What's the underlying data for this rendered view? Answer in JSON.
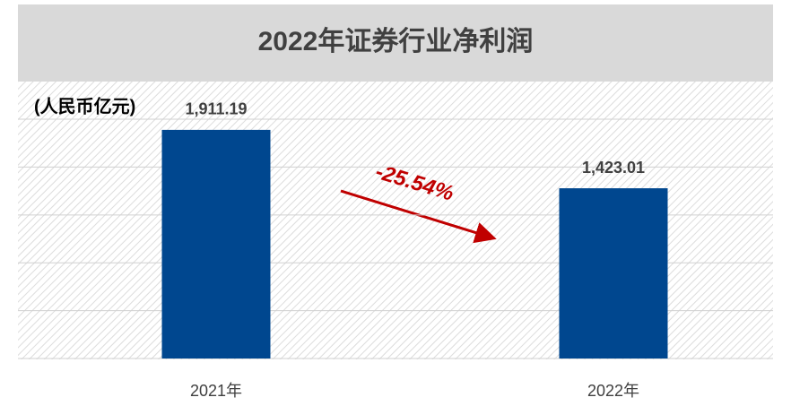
{
  "chart_data": {
    "type": "bar",
    "title": "2022年证券行业净利润",
    "unit_label": "(人民币亿元)",
    "categories": [
      "2021年",
      "2022年"
    ],
    "values": [
      1911.19,
      1423.01
    ],
    "value_labels": [
      "1,911.19",
      "1,423.01"
    ],
    "color": "#00478f",
    "ylim": [
      0,
      2300
    ],
    "yticks": [
      0,
      400,
      800,
      1200,
      1600,
      2000
    ],
    "grid": true,
    "annotation": "-25.54%",
    "annotation_color": "#c00000"
  }
}
